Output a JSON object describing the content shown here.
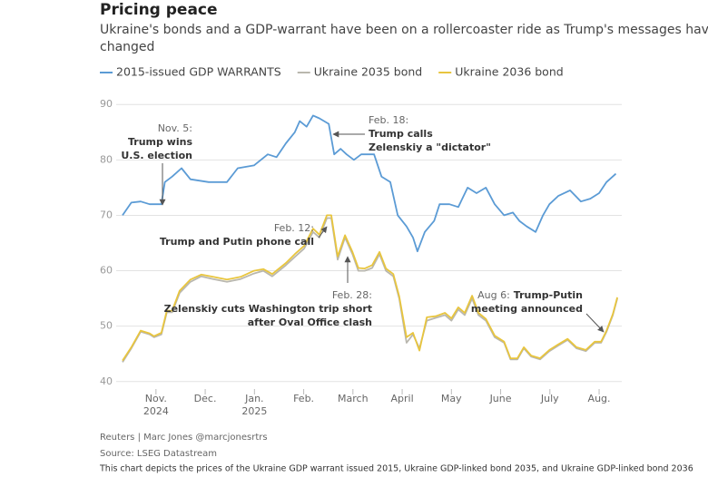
{
  "chart_data": {
    "type": "line",
    "title": "Pricing peace",
    "subtitle": [
      "Ukraine's bonds and a GDP-warrant have been on a rollercoaster ride as Trump's messages have",
      "changed"
    ],
    "series": [
      {
        "name": "2015-issued GDP WARRANTS",
        "color": "#5b9bd5",
        "x": [
          -0.68,
          -0.5,
          -0.31,
          -0.13,
          0.11,
          0.18,
          0.33,
          0.52,
          0.7,
          1.07,
          1.44,
          1.66,
          1.99,
          2.27,
          2.45,
          2.64,
          2.82,
          2.92,
          3.06,
          3.19,
          3.32,
          3.51,
          3.62,
          3.75,
          3.87,
          4.02,
          4.17,
          4.43,
          4.58,
          4.76,
          4.91,
          5.09,
          5.22,
          5.31,
          5.46,
          5.65,
          5.76,
          5.96,
          6.14,
          6.33,
          6.51,
          6.7,
          6.88,
          7.07,
          7.25,
          7.38,
          7.53,
          7.71,
          7.86,
          7.99,
          8.17,
          8.41,
          8.63,
          8.82,
          9.0,
          9.15,
          9.34
        ],
        "values": [
          70,
          72.3,
          72.5,
          72,
          72,
          76,
          77,
          78.5,
          76.5,
          76,
          76,
          78.5,
          79,
          81,
          80.5,
          83,
          85,
          87,
          86,
          88,
          87.5,
          86.5,
          81,
          82,
          81,
          80,
          81,
          81,
          77,
          76,
          70,
          68,
          66,
          63.5,
          67,
          69,
          72,
          72,
          71.5,
          75,
          74,
          75,
          72,
          70,
          70.5,
          69,
          68,
          67,
          70,
          72,
          73.5,
          74.5,
          72.5,
          73,
          74,
          76,
          77.5
        ]
      },
      {
        "name": "Ukraine 2035 bond",
        "color": "#b9b7ae",
        "x": [
          -0.68,
          -0.5,
          -0.31,
          -0.13,
          -0.04,
          0.11,
          0.22,
          0.33,
          0.48,
          0.7,
          0.92,
          1.16,
          1.44,
          1.72,
          1.99,
          2.18,
          2.36,
          2.64,
          2.82,
          3.01,
          3.19,
          3.32,
          3.47,
          3.56,
          3.69,
          3.84,
          3.99,
          4.11,
          4.24,
          4.39,
          4.54,
          4.67,
          4.82,
          4.94,
          5.09,
          5.22,
          5.35,
          5.5,
          5.68,
          5.87,
          6.0,
          6.14,
          6.27,
          6.42,
          6.55,
          6.7,
          6.88,
          7.07,
          7.2,
          7.34,
          7.47,
          7.62,
          7.8,
          7.99,
          8.17,
          8.36,
          8.54,
          8.73,
          8.91,
          9.04,
          9.15,
          9.28,
          9.37
        ],
        "values": [
          43.5,
          46,
          49,
          48.5,
          48,
          48.5,
          52.5,
          52.5,
          56,
          58,
          59,
          58.5,
          58,
          58.5,
          59.5,
          60,
          59,
          61,
          62.5,
          64,
          67,
          66,
          69.5,
          69.5,
          62,
          66,
          63,
          60,
          60,
          60.5,
          63,
          60,
          59,
          55,
          47,
          48.5,
          46,
          51,
          51.5,
          52,
          51,
          53,
          52,
          55,
          52,
          51,
          48,
          47,
          44,
          44,
          46,
          44.5,
          44,
          45.5,
          46.5,
          47.5,
          46,
          45.5,
          47,
          47,
          49,
          52,
          55
        ]
      },
      {
        "name": "Ukraine 2036 bond",
        "color": "#e8c53e",
        "x": [
          -0.68,
          -0.5,
          -0.31,
          -0.13,
          -0.04,
          0.11,
          0.22,
          0.33,
          0.48,
          0.7,
          0.92,
          1.16,
          1.44,
          1.72,
          1.99,
          2.18,
          2.36,
          2.64,
          2.82,
          3.01,
          3.19,
          3.32,
          3.47,
          3.56,
          3.69,
          3.84,
          3.99,
          4.11,
          4.24,
          4.39,
          4.54,
          4.67,
          4.82,
          4.94,
          5.09,
          5.22,
          5.35,
          5.5,
          5.68,
          5.87,
          6.0,
          6.14,
          6.27,
          6.42,
          6.55,
          6.7,
          6.88,
          7.07,
          7.2,
          7.34,
          7.47,
          7.62,
          7.8,
          7.99,
          8.17,
          8.36,
          8.54,
          8.73,
          8.91,
          9.04,
          9.15,
          9.28,
          9.37
        ],
        "values": [
          43.8,
          46.2,
          49.2,
          48.7,
          48.2,
          48.8,
          52.8,
          52.8,
          56.4,
          58.4,
          59.3,
          58.9,
          58.4,
          58.9,
          60,
          60.3,
          59.4,
          61.4,
          63,
          64.5,
          67.6,
          66.5,
          70,
          70,
          62.6,
          66.4,
          63.4,
          60.5,
          60.4,
          61,
          63.4,
          60.4,
          59.4,
          55.4,
          48,
          48.8,
          45.6,
          51.6,
          51.8,
          52.4,
          51.4,
          53.4,
          52.4,
          55.5,
          52.4,
          51.3,
          48.3,
          47.2,
          44.2,
          44.2,
          46.2,
          44.7,
          44.2,
          45.7,
          46.7,
          47.7,
          46.2,
          45.7,
          47.2,
          47.2,
          49.2,
          52.2,
          55.2
        ]
      }
    ],
    "xlim": [
      -1.14,
      9.46
    ],
    "xticks": [
      {
        "value": 0,
        "label": "Nov.",
        "year": "2024"
      },
      {
        "value": 1,
        "label": "Dec."
      },
      {
        "value": 2,
        "label": "Jan.",
        "year": "2025"
      },
      {
        "value": 3,
        "label": "Feb."
      },
      {
        "value": 4,
        "label": "March"
      },
      {
        "value": 5,
        "label": "April"
      },
      {
        "value": 6,
        "label": "May"
      },
      {
        "value": 7,
        "label": "June"
      },
      {
        "value": 8,
        "label": "July"
      },
      {
        "value": 9,
        "label": "Aug."
      }
    ],
    "ylim": [
      38,
      92
    ],
    "yticks": [
      40,
      50,
      60,
      70,
      80,
      90
    ],
    "grid": true,
    "annotations": [
      {
        "date": "Nov. 5:",
        "text": [
          "Trump wins",
          "U.S. election"
        ]
      },
      {
        "date": "Feb. 18:",
        "text": [
          "Trump calls",
          "Zelenskiy a \"dictator\""
        ]
      },
      {
        "date": "Feb. 12:",
        "text": [
          "Trump and Putin phone call"
        ]
      },
      {
        "date": "Feb. 28:",
        "text": [
          "Zelenskiy cuts Washington trip short",
          "after Oval Office clash"
        ]
      },
      {
        "date": "Aug 6:",
        "text": [
          "Trump-Putin",
          "meeting announced"
        ]
      }
    ],
    "credit": "Reuters | Marc Jones @marcjonesrtrs",
    "source": "Source: LSEG Datastream",
    "note": "This chart depicts the prices of the Ukraine GDP warrant issued 2015, Ukraine GDP-linked bond 2035, and Ukraine GDP-linked bond 2036"
  }
}
